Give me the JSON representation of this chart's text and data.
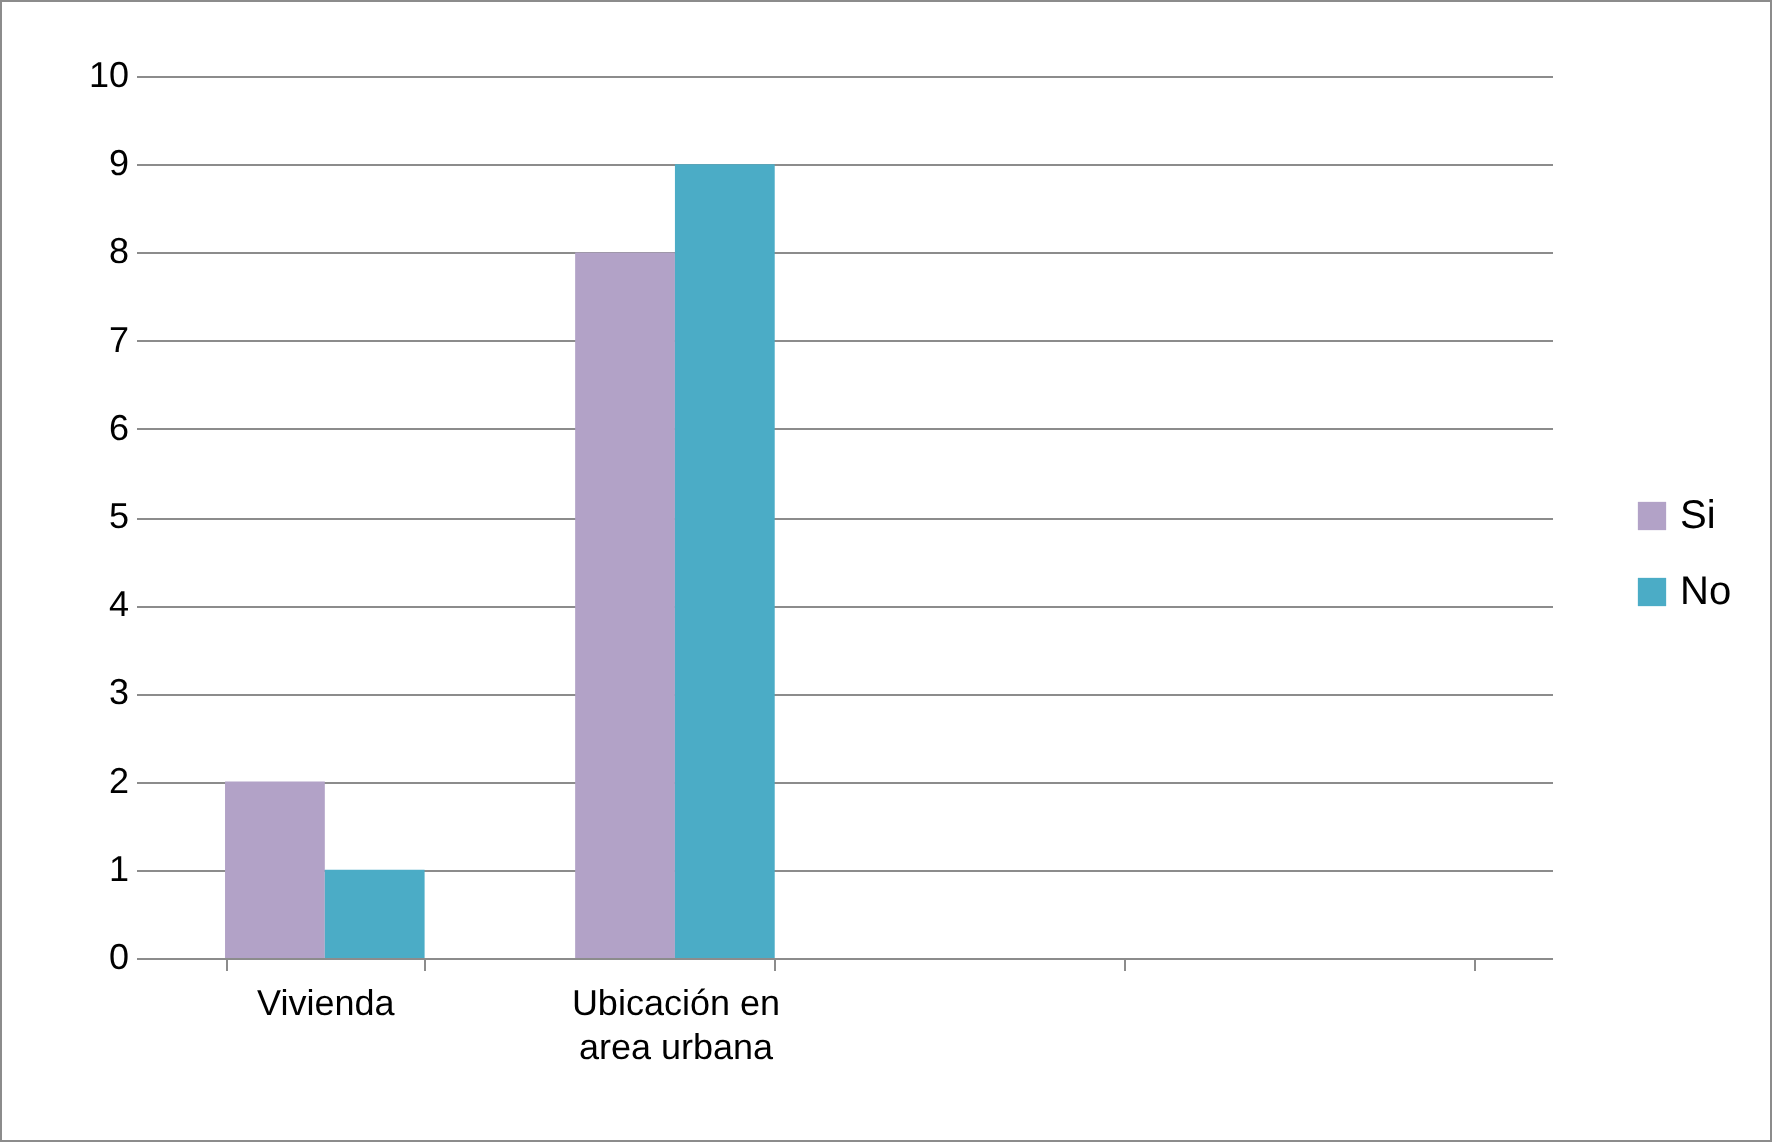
{
  "chart_data": {
    "type": "bar",
    "categories": [
      "Vivienda",
      "Ubicación en area urbana",
      null,
      null
    ],
    "series": [
      {
        "name": "Si",
        "color": "#b2a2c7",
        "values": [
          2,
          8,
          null,
          null
        ]
      },
      {
        "name": "No",
        "color": "#4bacc6",
        "values": [
          1,
          9,
          null,
          null
        ]
      }
    ],
    "ylim": [
      0,
      10
    ],
    "yticks": [
      0,
      1,
      2,
      3,
      4,
      5,
      6,
      7,
      8,
      9,
      10
    ],
    "grid": "y",
    "legend": "right"
  }
}
